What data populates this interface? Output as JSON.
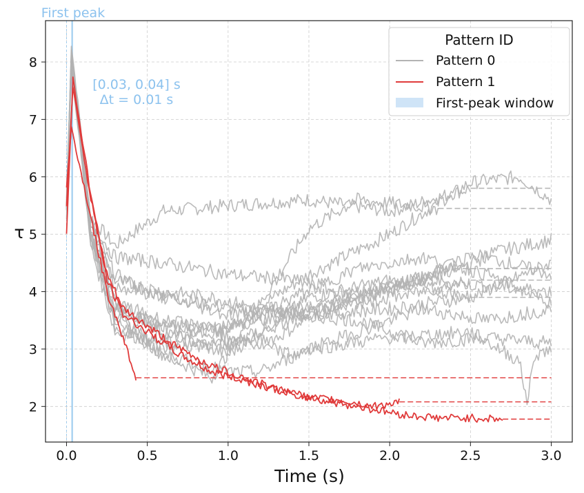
{
  "chart_data": {
    "type": "line",
    "xlabel": "Time (s)",
    "ylabel": "τ",
    "xlim": [
      -0.13,
      3.13
    ],
    "ylim": [
      1.38,
      8.72
    ],
    "xticks": [
      {
        "value": 0.0,
        "label": "0.0"
      },
      {
        "value": 0.5,
        "label": "0.5"
      },
      {
        "value": 1.0,
        "label": "1.0"
      },
      {
        "value": 1.5,
        "label": "1.5"
      },
      {
        "value": 2.0,
        "label": "2.0"
      },
      {
        "value": 2.5,
        "label": "2.5"
      },
      {
        "value": 3.0,
        "label": "3.0"
      }
    ],
    "yticks": [
      {
        "value": 2,
        "label": "2"
      },
      {
        "value": 3,
        "label": "3"
      },
      {
        "value": 4,
        "label": "4"
      },
      {
        "value": 5,
        "label": "5"
      },
      {
        "value": 6,
        "label": "6"
      },
      {
        "value": 7,
        "label": "7"
      },
      {
        "value": 8,
        "label": "8"
      }
    ],
    "grid": true,
    "colors": {
      "pattern0": "#b3b3b3",
      "pattern1": "#e03a3a",
      "window": "#9ccbee",
      "annotation": "#8cc2ee",
      "grid": "#cccccc"
    },
    "first_peak_window": {
      "start": 0.03,
      "end": 0.04
    },
    "annotations": {
      "top_label": "First peak",
      "window_text": "[0.03, 0.04] s",
      "delta_text": "Δt = 0.01 s"
    },
    "legend": {
      "title": "Pattern ID",
      "position": "top-right",
      "entries": [
        {
          "label": "Pattern 0",
          "kind": "line",
          "color": "#b3b3b3"
        },
        {
          "label": "Pattern 1",
          "kind": "line",
          "color": "#e03a3a"
        },
        {
          "label": "First-peak window",
          "kind": "patch",
          "color": "#cfe4f7"
        }
      ]
    },
    "series": [
      {
        "name": "Pattern 0",
        "points": [
          [
            0.0,
            5.5
          ],
          [
            0.03,
            8.3
          ],
          [
            0.15,
            5.3
          ],
          [
            0.3,
            4.8
          ],
          [
            0.6,
            5.4
          ],
          [
            1.0,
            5.5
          ],
          [
            1.5,
            5.6
          ],
          [
            2.0,
            5.4
          ],
          [
            2.5,
            5.8
          ],
          [
            3.0,
            5.8
          ]
        ]
      },
      {
        "name": "Pattern 0",
        "points": [
          [
            0.0,
            5.4
          ],
          [
            0.03,
            8.1
          ],
          [
            0.15,
            5.0
          ],
          [
            0.3,
            3.6
          ],
          [
            0.5,
            3.2
          ],
          [
            1.0,
            3.4
          ],
          [
            1.5,
            4.3
          ],
          [
            2.0,
            5.0
          ],
          [
            2.5,
            5.9
          ],
          [
            2.8,
            6.0
          ],
          [
            3.0,
            5.6
          ]
        ]
      },
      {
        "name": "Pattern 0",
        "points": [
          [
            0.0,
            5.6
          ],
          [
            0.03,
            8.2
          ],
          [
            0.15,
            5.2
          ],
          [
            0.3,
            4.3
          ],
          [
            0.5,
            4.0
          ],
          [
            1.0,
            3.7
          ],
          [
            1.5,
            3.6
          ],
          [
            2.0,
            4.0
          ],
          [
            2.5,
            4.6
          ],
          [
            3.0,
            4.9
          ]
        ]
      },
      {
        "name": "Pattern 0",
        "points": [
          [
            0.0,
            5.5
          ],
          [
            0.03,
            8.0
          ],
          [
            0.15,
            5.0
          ],
          [
            0.3,
            3.8
          ],
          [
            0.6,
            3.3
          ],
          [
            1.0,
            2.9
          ],
          [
            1.5,
            3.9
          ],
          [
            2.0,
            4.2
          ],
          [
            2.5,
            3.9
          ],
          [
            3.0,
            3.9
          ]
        ]
      },
      {
        "name": "Pattern 0",
        "points": [
          [
            0.0,
            5.3
          ],
          [
            0.03,
            7.9
          ],
          [
            0.15,
            4.9
          ],
          [
            0.3,
            3.6
          ],
          [
            0.6,
            2.9
          ],
          [
            0.9,
            2.5
          ],
          [
            1.2,
            3.8
          ],
          [
            1.5,
            5.1
          ],
          [
            1.8,
            5.6
          ],
          [
            2.3,
            5.45
          ],
          [
            3.0,
            5.45
          ]
        ]
      },
      {
        "name": "Pattern 0",
        "points": [
          [
            0.0,
            5.4
          ],
          [
            0.03,
            8.1
          ],
          [
            0.15,
            4.8
          ],
          [
            0.3,
            3.3
          ],
          [
            0.6,
            3.1
          ],
          [
            1.0,
            3.1
          ],
          [
            1.3,
            3.2
          ],
          [
            1.6,
            3.7
          ],
          [
            2.0,
            4.1
          ],
          [
            2.4,
            4.4
          ],
          [
            3.0,
            4.4
          ]
        ]
      },
      {
        "name": "Pattern 0",
        "points": [
          [
            0.0,
            5.5
          ],
          [
            0.03,
            8.2
          ],
          [
            0.15,
            5.1
          ],
          [
            0.3,
            4.2
          ],
          [
            0.6,
            4.0
          ],
          [
            0.9,
            3.9
          ],
          [
            1.2,
            3.7
          ],
          [
            1.5,
            3.6
          ],
          [
            2.0,
            3.7
          ],
          [
            2.5,
            3.9
          ],
          [
            3.0,
            4.5
          ]
        ]
      },
      {
        "name": "Pattern 0",
        "points": [
          [
            0.0,
            5.6
          ],
          [
            0.03,
            8.0
          ],
          [
            0.15,
            5.2
          ],
          [
            0.3,
            4.6
          ],
          [
            0.6,
            4.5
          ],
          [
            1.0,
            4.3
          ],
          [
            1.4,
            4.2
          ],
          [
            1.8,
            3.9
          ],
          [
            2.2,
            4.2
          ],
          [
            2.6,
            4.6
          ],
          [
            3.0,
            4.3
          ]
        ]
      },
      {
        "name": "Pattern 0",
        "points": [
          [
            0.0,
            5.5
          ],
          [
            0.03,
            8.1
          ],
          [
            0.15,
            5.0
          ],
          [
            0.3,
            3.7
          ],
          [
            0.6,
            3.4
          ],
          [
            1.0,
            3.4
          ],
          [
            1.4,
            3.6
          ],
          [
            1.8,
            3.5
          ],
          [
            2.2,
            3.1
          ],
          [
            2.6,
            3.2
          ],
          [
            3.0,
            3.1
          ]
        ]
      },
      {
        "name": "Pattern 0",
        "points": [
          [
            0.0,
            5.4
          ],
          [
            0.03,
            7.9
          ],
          [
            0.15,
            4.9
          ],
          [
            0.3,
            3.5
          ],
          [
            0.6,
            3.0
          ],
          [
            1.0,
            3.1
          ],
          [
            1.4,
            3.5
          ],
          [
            1.8,
            4.0
          ],
          [
            2.2,
            4.2
          ],
          [
            2.6,
            4.1
          ],
          [
            3.0,
            4.0
          ]
        ]
      },
      {
        "name": "Pattern 0",
        "points": [
          [
            0.0,
            5.5
          ],
          [
            0.03,
            8.0
          ],
          [
            0.15,
            5.0
          ],
          [
            0.3,
            3.4
          ],
          [
            0.6,
            2.9
          ],
          [
            1.0,
            2.6
          ],
          [
            1.2,
            2.6
          ],
          [
            1.5,
            3.0
          ],
          [
            2.0,
            3.2
          ],
          [
            2.5,
            3.3
          ],
          [
            2.8,
            2.8
          ],
          [
            2.85,
            2.1
          ],
          [
            2.9,
            2.9
          ],
          [
            3.0,
            3.0
          ]
        ]
      },
      {
        "name": "Pattern 0",
        "points": [
          [
            0.0,
            5.5
          ],
          [
            0.03,
            8.2
          ],
          [
            0.15,
            5.1
          ],
          [
            0.3,
            3.8
          ],
          [
            0.6,
            3.5
          ],
          [
            1.0,
            3.3
          ],
          [
            1.4,
            3.9
          ],
          [
            1.8,
            4.4
          ],
          [
            2.2,
            4.6
          ],
          [
            2.6,
            4.3
          ],
          [
            3.0,
            3.8
          ]
        ]
      },
      {
        "name": "Pattern 0",
        "points": [
          [
            0.0,
            5.5
          ],
          [
            0.03,
            8.1
          ],
          [
            0.15,
            5.0
          ],
          [
            0.3,
            3.7
          ],
          [
            0.6,
            3.4
          ],
          [
            1.0,
            3.2
          ],
          [
            1.4,
            2.9
          ],
          [
            1.8,
            3.3
          ],
          [
            2.2,
            3.7
          ],
          [
            2.6,
            3.5
          ],
          [
            3.0,
            3.7
          ]
        ]
      },
      {
        "name": "Pattern 0",
        "points": [
          [
            0.0,
            5.5
          ],
          [
            0.03,
            8.0
          ],
          [
            0.15,
            5.2
          ],
          [
            0.3,
            4.1
          ],
          [
            0.6,
            3.9
          ],
          [
            1.0,
            3.6
          ],
          [
            1.4,
            3.7
          ],
          [
            1.8,
            3.8
          ],
          [
            2.2,
            4.0
          ],
          [
            2.5,
            4.2
          ],
          [
            3.0,
            4.2
          ]
        ]
      },
      {
        "name": "Pattern 1",
        "points": [
          [
            0.0,
            5.0
          ],
          [
            0.04,
            7.7
          ],
          [
            0.15,
            5.7
          ],
          [
            0.25,
            4.2
          ],
          [
            0.35,
            3.6
          ],
          [
            0.5,
            3.3
          ],
          [
            0.7,
            2.9
          ],
          [
            0.9,
            2.6
          ],
          [
            1.1,
            2.45
          ],
          [
            1.3,
            2.3
          ],
          [
            1.5,
            2.15
          ],
          [
            1.7,
            2.05
          ],
          [
            1.9,
            1.95
          ],
          [
            2.1,
            1.85
          ],
          [
            2.3,
            1.8
          ],
          [
            2.5,
            1.8
          ],
          [
            2.7,
            1.78
          ],
          [
            3.0,
            1.78
          ]
        ]
      },
      {
        "name": "Pattern 1",
        "points": [
          [
            0.0,
            5.8
          ],
          [
            0.03,
            6.85
          ],
          [
            0.15,
            5.3
          ],
          [
            0.25,
            4.0
          ],
          [
            0.35,
            3.2
          ],
          [
            0.43,
            2.5
          ],
          [
            3.0,
            2.5
          ]
        ]
      },
      {
        "name": "Pattern 1",
        "points": [
          [
            0.0,
            5.5
          ],
          [
            0.04,
            7.6
          ],
          [
            0.15,
            5.6
          ],
          [
            0.25,
            4.3
          ],
          [
            0.35,
            3.7
          ],
          [
            0.5,
            3.4
          ],
          [
            0.7,
            3.0
          ],
          [
            0.9,
            2.7
          ],
          [
            1.1,
            2.5
          ],
          [
            1.3,
            2.3
          ],
          [
            1.5,
            2.15
          ],
          [
            1.7,
            2.1
          ],
          [
            1.9,
            2.0
          ],
          [
            2.06,
            2.08
          ],
          [
            3.0,
            2.08
          ]
        ]
      }
    ]
  }
}
